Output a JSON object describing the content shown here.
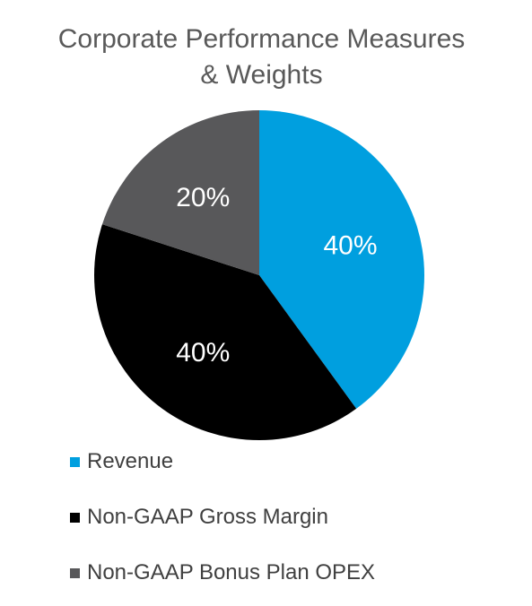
{
  "chart_data": {
    "type": "pie",
    "title": [
      "Corporate Performance Measures",
      "& Weights"
    ],
    "categories": [
      "Revenue",
      "Non-GAAP Gross Margin",
      "Non-GAAP Bonus Plan OPEX"
    ],
    "values": [
      40,
      40,
      20
    ],
    "data_labels": [
      "40%",
      "40%",
      "20%"
    ],
    "colors": [
      "#009fdf",
      "#000000",
      "#58585a"
    ],
    "data_label_color": "#ffffff",
    "legend_position": "bottom",
    "start_angle_deg": 0,
    "direction": "clockwise"
  }
}
